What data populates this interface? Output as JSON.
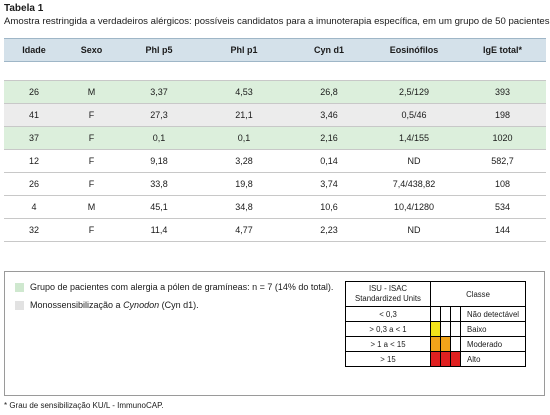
{
  "title": "Tabela 1",
  "subtitle": "Amostra restringida a verdadeiros alérgicos: possíveis candidatos para a imunoterapia específica, em um grupo de 50 pacientes",
  "table": {
    "headers": [
      "Idade",
      "Sexo",
      "Phl p5",
      "Phl p1",
      "Cyn d1",
      "Eosinófilos",
      "IgE total*"
    ],
    "rows": [
      [
        "26",
        "M",
        "3,37",
        "4,53",
        "26,8",
        "2,5/129",
        "393"
      ],
      [
        "41",
        "F",
        "27,3",
        "21,1",
        "3,46",
        "0,5/46",
        "198"
      ],
      [
        "37",
        "F",
        "0,1",
        "0,1",
        "2,16",
        "1,4/155",
        "1020"
      ],
      [
        "12",
        "F",
        "9,18",
        "3,28",
        "0,14",
        "ND",
        "582,7"
      ],
      [
        "26",
        "F",
        "33,8",
        "19,8",
        "3,74",
        "7,4/438,82",
        "108"
      ],
      [
        "4",
        "M",
        "45,1",
        "34,8",
        "10,6",
        "10,4/1280",
        "534"
      ],
      [
        "32",
        "F",
        "11,4",
        "4,77",
        "2,23",
        "ND",
        "144"
      ]
    ],
    "row_highlight": [
      "green",
      "gray",
      "green",
      "none",
      "none",
      "none",
      "none"
    ]
  },
  "legend": {
    "green_text": "Grupo de pacientes com alergia a pólen de gramíneas: n = 7 (14% do total).",
    "gray_text_prefix": "Monossensibilização a ",
    "gray_text_italic": "Cynodon",
    "gray_text_suffix": " (Cyn d1).",
    "colors": {
      "green": "#cfe8cf",
      "gray": "#e2e2e2"
    }
  },
  "isu_table": {
    "header_line1": "ISU - ISAC",
    "header_line2": "Standardized Units",
    "header_class": "Classe",
    "rows": [
      {
        "range": "< 0,3",
        "class": "Não detectável",
        "colors": [
          "#ffffff",
          "#ffffff",
          "#ffffff"
        ]
      },
      {
        "range": "> 0,3 a < 1",
        "class": "Baixo",
        "colors": [
          "#f2e21a",
          "#ffffff",
          "#ffffff"
        ]
      },
      {
        "range": "> 1 a < 15",
        "class": "Moderado",
        "colors": [
          "#f2a41a",
          "#f2a41a",
          "#ffffff"
        ]
      },
      {
        "range": "> 15",
        "class": "Alto",
        "colors": [
          "#e02020",
          "#e02020",
          "#e02020"
        ]
      }
    ]
  },
  "footnote": "* Grau de sensibilização KU/L - ImmunoCAP."
}
